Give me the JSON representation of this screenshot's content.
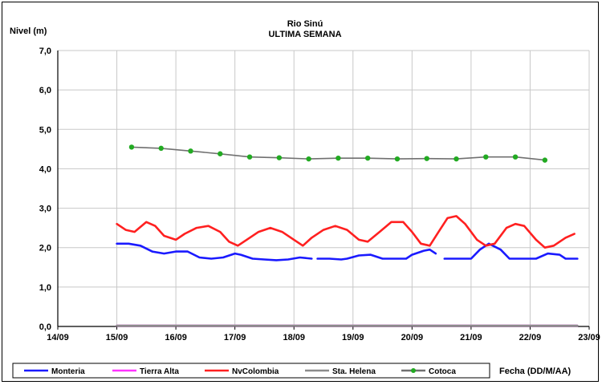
{
  "chart_data": {
    "type": "line",
    "title": "Rio Sinú",
    "subtitle": "ULTIMA SEMANA",
    "ylabel": "Nivel (m)",
    "xlabel": "Fecha (DD/M/AA)",
    "ylim": [
      0,
      7
    ],
    "yticks": [
      "0,0",
      "1,0",
      "2,0",
      "3,0",
      "4,0",
      "5,0",
      "6,0",
      "7,0"
    ],
    "xlim": [
      0,
      9
    ],
    "xticks": [
      "14/09",
      "15/09",
      "16/09",
      "17/09",
      "18/09",
      "19/09",
      "20/09",
      "21/09",
      "22/09",
      "23/09"
    ],
    "grid": true,
    "legend_position": "bottom",
    "series": [
      {
        "name": "Monteria",
        "color": "#1a1aff",
        "points": [
          [
            1.0,
            2.1
          ],
          [
            1.2,
            2.1
          ],
          [
            1.4,
            2.05
          ],
          [
            1.6,
            1.9
          ],
          [
            1.8,
            1.85
          ],
          [
            2.0,
            1.9
          ],
          [
            2.2,
            1.9
          ],
          [
            2.4,
            1.75
          ],
          [
            2.6,
            1.72
          ],
          [
            2.8,
            1.75
          ],
          [
            3.0,
            1.85
          ],
          [
            3.1,
            1.82
          ],
          [
            3.3,
            1.72
          ],
          [
            3.5,
            1.7
          ],
          [
            3.7,
            1.68
          ],
          [
            3.9,
            1.7
          ],
          [
            4.1,
            1.75
          ],
          [
            4.3,
            1.72
          ],
          null,
          [
            4.4,
            1.72
          ],
          [
            4.6,
            1.72
          ],
          [
            4.8,
            1.7
          ],
          [
            4.9,
            1.72
          ],
          [
            5.1,
            1.8
          ],
          [
            5.3,
            1.82
          ],
          [
            5.5,
            1.72
          ],
          [
            5.7,
            1.72
          ],
          [
            5.9,
            1.72
          ],
          [
            6.0,
            1.82
          ],
          [
            6.2,
            1.92
          ],
          [
            6.3,
            1.95
          ],
          [
            6.4,
            1.85
          ],
          null,
          [
            6.55,
            1.72
          ],
          [
            6.7,
            1.72
          ],
          [
            6.9,
            1.72
          ],
          [
            7.0,
            1.72
          ],
          [
            7.15,
            1.95
          ],
          [
            7.3,
            2.1
          ],
          [
            7.5,
            1.95
          ],
          [
            7.65,
            1.72
          ],
          [
            7.85,
            1.72
          ],
          [
            8.1,
            1.72
          ],
          [
            8.3,
            1.85
          ],
          [
            8.5,
            1.82
          ],
          [
            8.6,
            1.72
          ],
          [
            8.8,
            1.72
          ]
        ]
      },
      {
        "name": "Tierra Alta",
        "color": "#ff33ff",
        "points": [
          [
            1.0,
            0.02
          ],
          [
            8.8,
            0.02
          ]
        ]
      },
      {
        "name": "NvColombia",
        "color": "#ff2020",
        "points": [
          [
            1.0,
            2.6
          ],
          [
            1.15,
            2.45
          ],
          [
            1.3,
            2.4
          ],
          [
            1.5,
            2.65
          ],
          [
            1.65,
            2.55
          ],
          [
            1.8,
            2.3
          ],
          [
            2.0,
            2.2
          ],
          [
            2.15,
            2.35
          ],
          [
            2.35,
            2.5
          ],
          [
            2.55,
            2.55
          ],
          [
            2.75,
            2.4
          ],
          [
            2.9,
            2.15
          ],
          [
            3.05,
            2.05
          ],
          [
            3.2,
            2.2
          ],
          [
            3.4,
            2.4
          ],
          [
            3.6,
            2.5
          ],
          [
            3.8,
            2.4
          ],
          [
            4.0,
            2.2
          ],
          [
            4.15,
            2.05
          ],
          [
            4.3,
            2.25
          ],
          [
            4.5,
            2.45
          ],
          [
            4.7,
            2.55
          ],
          [
            4.9,
            2.45
          ],
          [
            5.1,
            2.2
          ],
          [
            5.25,
            2.15
          ],
          [
            5.45,
            2.4
          ],
          [
            5.65,
            2.65
          ],
          [
            5.85,
            2.65
          ],
          [
            6.0,
            2.4
          ],
          [
            6.15,
            2.1
          ],
          [
            6.3,
            2.05
          ],
          [
            6.45,
            2.4
          ],
          [
            6.6,
            2.75
          ],
          [
            6.75,
            2.8
          ],
          [
            6.9,
            2.6
          ],
          [
            7.1,
            2.2
          ],
          [
            7.25,
            2.05
          ],
          [
            7.4,
            2.1
          ],
          [
            7.6,
            2.5
          ],
          [
            7.75,
            2.6
          ],
          [
            7.9,
            2.55
          ],
          [
            8.1,
            2.2
          ],
          [
            8.25,
            2.0
          ],
          [
            8.4,
            2.05
          ],
          [
            8.6,
            2.25
          ],
          [
            8.75,
            2.35
          ]
        ]
      },
      {
        "name": "Sta. Helena",
        "color": "#8c8c8c",
        "points": [
          [
            1.0,
            0.02
          ],
          [
            8.8,
            0.02
          ]
        ]
      },
      {
        "name": "Cotoca",
        "color": "#22aa22",
        "line_color": "#707070",
        "marker": "circle",
        "points": [
          [
            1.25,
            4.55
          ],
          [
            1.75,
            4.52
          ],
          [
            2.25,
            4.45
          ],
          [
            2.75,
            4.38
          ],
          [
            3.25,
            4.3
          ],
          [
            3.75,
            4.28
          ],
          [
            4.25,
            4.25
          ],
          [
            4.75,
            4.27
          ],
          [
            5.25,
            4.27
          ],
          [
            5.75,
            4.25
          ],
          [
            6.25,
            4.26
          ],
          [
            6.75,
            4.25
          ],
          [
            7.25,
            4.3
          ],
          [
            7.75,
            4.3
          ],
          [
            8.25,
            4.22
          ]
        ]
      }
    ]
  }
}
